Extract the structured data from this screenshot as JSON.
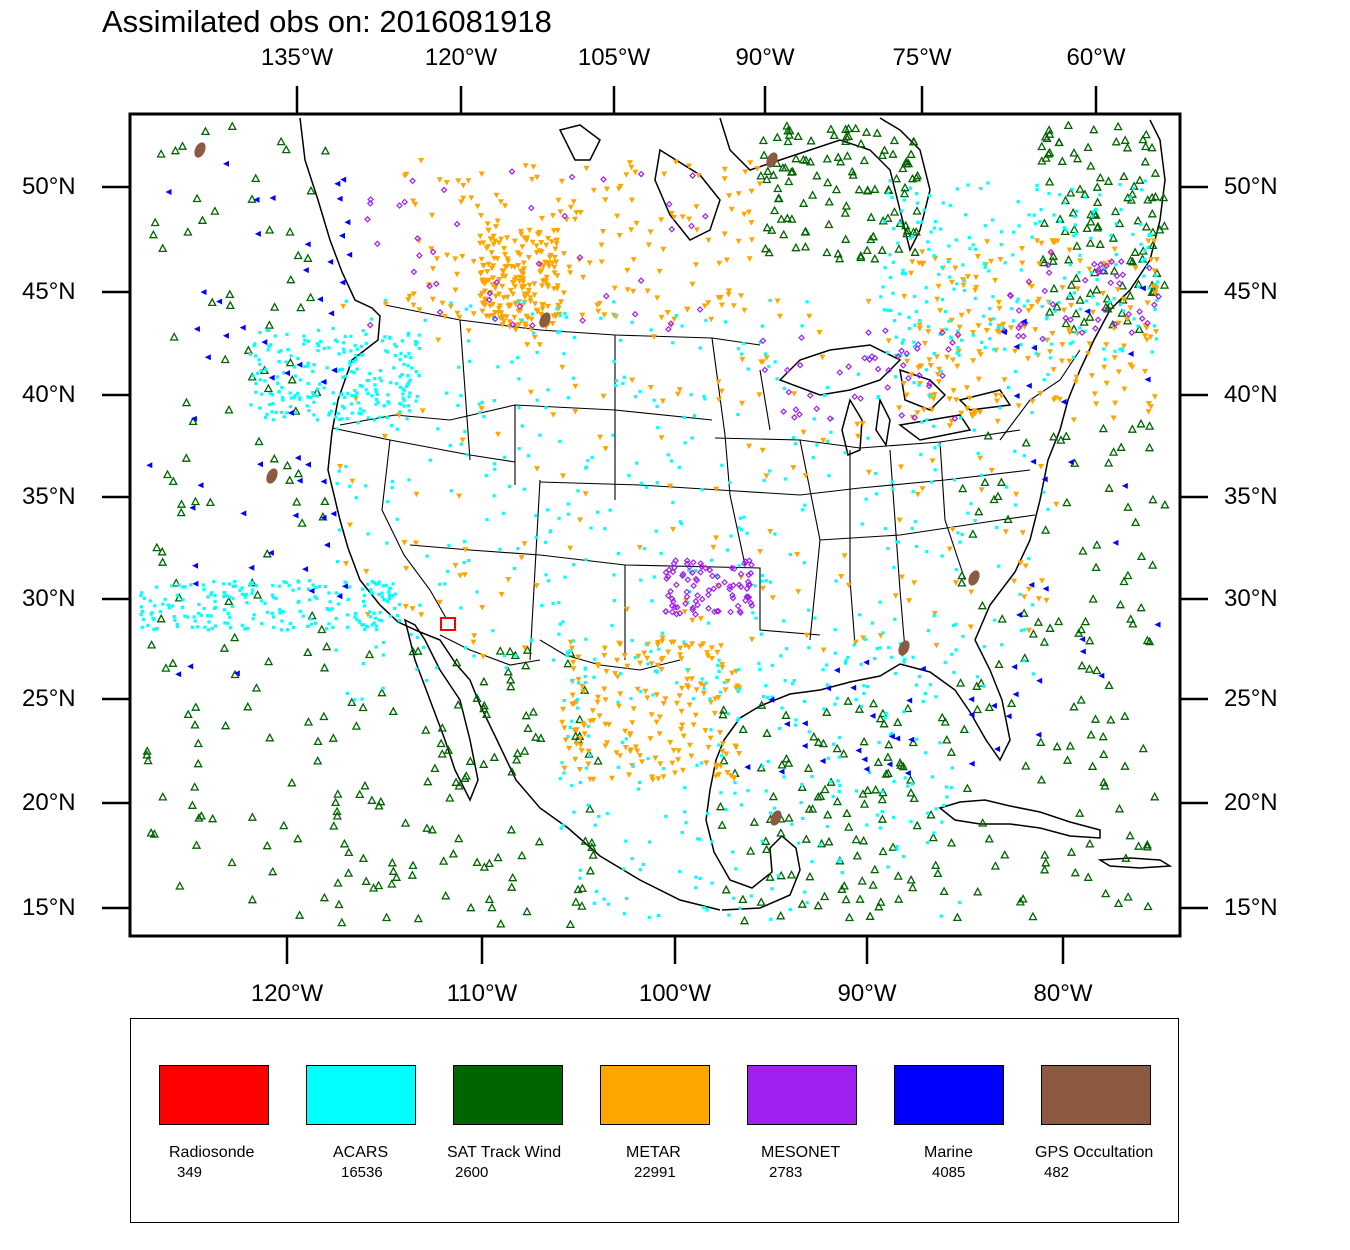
{
  "title": "Assimilated obs on: 2016081918",
  "top_lon_ticks": [
    "135°W",
    "120°W",
    "105°W",
    "90°W",
    "75°W",
    "60°W"
  ],
  "bottom_lon_ticks": [
    "120°W",
    "110°W",
    "100°W",
    "90°W",
    "80°W"
  ],
  "lat_ticks": [
    "50°N",
    "45°N",
    "40°N",
    "35°N",
    "30°N",
    "25°N",
    "20°N",
    "15°N"
  ],
  "legend": [
    {
      "name": "Radiosonde",
      "count": "349",
      "color": "#ff0000"
    },
    {
      "name": "ACARS",
      "count": "16536",
      "color": "#00ffff"
    },
    {
      "name": "SAT Track Wind",
      "count": "2600",
      "color": "#006400"
    },
    {
      "name": "METAR",
      "count": "22991",
      "color": "#ffa500"
    },
    {
      "name": "MESONET",
      "count": "2783",
      "color": "#a020f0"
    },
    {
      "name": "Marine",
      "count": "4085",
      "color": "#0000ff"
    },
    {
      "name": "GPS Occultation",
      "count": "482",
      "color": "#8b5a40"
    }
  ]
}
